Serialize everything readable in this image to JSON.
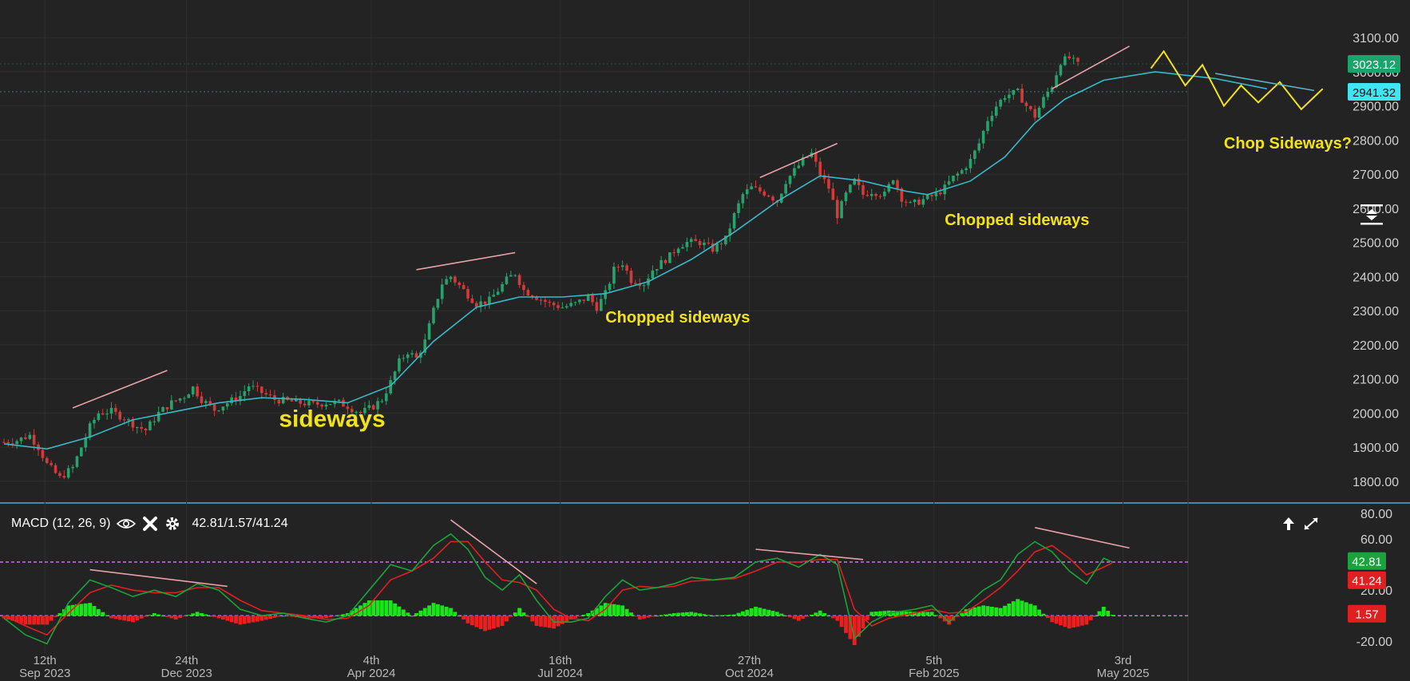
{
  "chart_data": [
    {
      "type": "candlestick",
      "title": "",
      "ylim": [
        1760,
        3140
      ],
      "y_ticks": [
        "3100.00",
        "3000.00",
        "2900.00",
        "2800.00",
        "2700.00",
        "2600.00",
        "2500.00",
        "2400.00",
        "2300.00",
        "2200.00",
        "2100.00",
        "2000.00",
        "1900.00",
        "1800.00"
      ],
      "x_ticks": [
        {
          "day": "12th",
          "month": "Sep 2023"
        },
        {
          "day": "24th",
          "month": "Dec 2023"
        },
        {
          "day": "4th",
          "month": "Apr 2024"
        },
        {
          "day": "16th",
          "month": "Jul 2024"
        },
        {
          "day": "27th",
          "month": "Oct 2024"
        },
        {
          "day": "5th",
          "month": "Feb 2025"
        },
        {
          "day": "3rd",
          "month": "May 2025"
        }
      ],
      "price_path": [
        [
          0,
          1915
        ],
        [
          3,
          1920
        ],
        [
          6,
          1935
        ],
        [
          8,
          1900
        ],
        [
          10,
          1850
        ],
        [
          13,
          1810
        ],
        [
          16,
          1840
        ],
        [
          18,
          1900
        ],
        [
          20,
          1960
        ],
        [
          22,
          2000
        ],
        [
          25,
          2005
        ],
        [
          28,
          1985
        ],
        [
          31,
          1960
        ],
        [
          33,
          1950
        ],
        [
          36,
          2000
        ],
        [
          39,
          2030
        ],
        [
          42,
          2050
        ],
        [
          44,
          2075
        ],
        [
          46,
          2040
        ],
        [
          49,
          2010
        ],
        [
          52,
          2030
        ],
        [
          55,
          2050
        ],
        [
          57,
          2080
        ],
        [
          60,
          2060
        ],
        [
          63,
          2040
        ],
        [
          66,
          2035
        ],
        [
          69,
          2030
        ],
        [
          72,
          2025
        ],
        [
          75,
          2030
        ],
        [
          78,
          2030
        ],
        [
          80,
          2020
        ],
        [
          83,
          2000
        ],
        [
          86,
          2020
        ],
        [
          88,
          2040
        ],
        [
          90,
          2090
        ],
        [
          92,
          2150
        ],
        [
          94,
          2180
        ],
        [
          96,
          2160
        ],
        [
          98,
          2210
        ],
        [
          100,
          2300
        ],
        [
          102,
          2380
        ],
        [
          104,
          2400
        ],
        [
          107,
          2360
        ],
        [
          110,
          2320
        ],
        [
          113,
          2330
        ],
        [
          115,
          2360
        ],
        [
          117,
          2390
        ],
        [
          119,
          2410
        ],
        [
          121,
          2360
        ],
        [
          124,
          2340
        ],
        [
          127,
          2320
        ],
        [
          130,
          2310
        ],
        [
          133,
          2320
        ],
        [
          136,
          2340
        ],
        [
          138,
          2310
        ],
        [
          140,
          2350
        ],
        [
          142,
          2420
        ],
        [
          144,
          2440
        ],
        [
          146,
          2390
        ],
        [
          149,
          2380
        ],
        [
          151,
          2420
        ],
        [
          153,
          2440
        ],
        [
          155,
          2460
        ],
        [
          157,
          2490
        ],
        [
          159,
          2500
        ],
        [
          162,
          2500
        ],
        [
          165,
          2480
        ],
        [
          168,
          2510
        ],
        [
          170,
          2580
        ],
        [
          172,
          2640
        ],
        [
          174,
          2660
        ],
        [
          176,
          2650
        ],
        [
          178,
          2640
        ],
        [
          180,
          2620
        ],
        [
          182,
          2680
        ],
        [
          184,
          2710
        ],
        [
          186,
          2740
        ],
        [
          188,
          2760
        ],
        [
          190,
          2700
        ],
        [
          192,
          2660
        ],
        [
          194,
          2580
        ],
        [
          196,
          2640
        ],
        [
          198,
          2680
        ],
        [
          200,
          2640
        ],
        [
          202,
          2650
        ],
        [
          205,
          2640
        ],
        [
          207,
          2690
        ],
        [
          209,
          2630
        ],
        [
          211,
          2610
        ],
        [
          213,
          2620
        ],
        [
          215,
          2630
        ],
        [
          217,
          2640
        ],
        [
          219,
          2660
        ],
        [
          221,
          2690
        ],
        [
          223,
          2710
        ],
        [
          225,
          2740
        ],
        [
          227,
          2790
        ],
        [
          229,
          2860
        ],
        [
          231,
          2900
        ],
        [
          233,
          2930
        ],
        [
          236,
          2940
        ],
        [
          238,
          2900
        ],
        [
          240,
          2870
        ],
        [
          242,
          2920
        ],
        [
          244,
          2960
        ],
        [
          246,
          3030
        ],
        [
          248,
          3040
        ],
        [
          250,
          3020
        ]
      ],
      "series": [
        {
          "name": "",
          "color": "#38b8c8",
          "points": [
            [
              0,
              1910
            ],
            [
              10,
              1895
            ],
            [
              20,
              1930
            ],
            [
              30,
              1980
            ],
            [
              40,
              2005
            ],
            [
              50,
              2030
            ],
            [
              60,
              2045
            ],
            [
              70,
              2040
            ],
            [
              80,
              2030
            ],
            [
              90,
              2080
            ],
            [
              100,
              2210
            ],
            [
              110,
              2310
            ],
            [
              120,
              2340
            ],
            [
              130,
              2340
            ],
            [
              140,
              2350
            ],
            [
              150,
              2385
            ],
            [
              160,
              2450
            ],
            [
              170,
              2530
            ],
            [
              180,
              2620
            ],
            [
              190,
              2695
            ],
            [
              200,
              2680
            ],
            [
              210,
              2650
            ],
            [
              215,
              2640
            ],
            [
              225,
              2680
            ],
            [
              233,
              2750
            ],
            [
              240,
              2850
            ],
            [
              247,
              2920
            ],
            [
              256,
              2975
            ],
            [
              268,
              3000
            ],
            [
              282,
              2980
            ],
            [
              294,
              2950
            ]
          ]
        }
      ],
      "price_labels": [
        {
          "value": "3023.12",
          "price": 3023.12,
          "color": "#1aa36b"
        },
        {
          "value": "2941.32",
          "price": 2941.32,
          "color": "#3ee6f5"
        }
      ],
      "annotations": [
        {
          "text": "sideways",
          "x": 64,
          "y": 1960,
          "size": 30
        },
        {
          "text": "Chopped sideways",
          "x": 140,
          "y": 2265,
          "size": 20
        },
        {
          "text": "Chopped sideways",
          "x": 219,
          "y": 2550,
          "size": 20
        },
        {
          "text": "Chop Sideways?",
          "x": 284,
          "y": 2775,
          "size": 20
        }
      ],
      "trend_lines": [
        {
          "x1": 16,
          "y1": 2015,
          "x2": 38,
          "y2": 2125,
          "color": "#e8a0a8"
        },
        {
          "x1": 96,
          "y1": 2420,
          "x2": 119,
          "y2": 2470,
          "color": "#e8a0a8"
        },
        {
          "x1": 176,
          "y1": 2690,
          "x2": 194,
          "y2": 2790,
          "color": "#e8a0a8"
        },
        {
          "x1": 244,
          "y1": 2950,
          "x2": 262,
          "y2": 3075,
          "color": "#e8a0a8"
        }
      ],
      "projection_zigzag": [
        [
          267,
          3010
        ],
        [
          270,
          3060
        ],
        [
          275,
          2960
        ],
        [
          279,
          3020
        ],
        [
          284,
          2900
        ],
        [
          288,
          2960
        ],
        [
          292,
          2910
        ],
        [
          297,
          2970
        ],
        [
          302,
          2890
        ],
        [
          307,
          2950
        ]
      ],
      "projection_line": [
        [
          282,
          2995
        ],
        [
          305,
          2945
        ]
      ]
    },
    {
      "type": "macd",
      "label": "MACD (12, 26, 9)",
      "values_text": "42.81/1.57/41.24",
      "ylim": [
        -28,
        82
      ],
      "y_ticks": [
        "80.00",
        "60.00",
        "20.00",
        "-20.00"
      ],
      "macd_value": 42.81,
      "signal_value": 41.24,
      "hist_value": 1.57,
      "macd_color": "#1aa33a",
      "signal_color": "#e02020",
      "level_lines": [
        42,
        0
      ],
      "macd_line": [
        [
          0,
          -2
        ],
        [
          5,
          -15
        ],
        [
          10,
          -22
        ],
        [
          15,
          10
        ],
        [
          20,
          28
        ],
        [
          25,
          22
        ],
        [
          30,
          15
        ],
        [
          35,
          20
        ],
        [
          40,
          15
        ],
        [
          45,
          25
        ],
        [
          50,
          20
        ],
        [
          55,
          5
        ],
        [
          60,
          0
        ],
        [
          65,
          2
        ],
        [
          70,
          -2
        ],
        [
          75,
          -5
        ],
        [
          80,
          0
        ],
        [
          85,
          20
        ],
        [
          90,
          40
        ],
        [
          95,
          35
        ],
        [
          100,
          55
        ],
        [
          104,
          64
        ],
        [
          108,
          52
        ],
        [
          112,
          30
        ],
        [
          116,
          20
        ],
        [
          120,
          32
        ],
        [
          124,
          12
        ],
        [
          128,
          -5
        ],
        [
          132,
          -5
        ],
        [
          136,
          -2
        ],
        [
          140,
          15
        ],
        [
          144,
          28
        ],
        [
          148,
          20
        ],
        [
          152,
          22
        ],
        [
          156,
          25
        ],
        [
          160,
          30
        ],
        [
          165,
          28
        ],
        [
          170,
          30
        ],
        [
          175,
          42
        ],
        [
          180,
          45
        ],
        [
          185,
          38
        ],
        [
          190,
          48
        ],
        [
          194,
          40
        ],
        [
          198,
          -18
        ],
        [
          202,
          -5
        ],
        [
          206,
          2
        ],
        [
          212,
          5
        ],
        [
          216,
          8
        ],
        [
          220,
          -5
        ],
        [
          224,
          8
        ],
        [
          228,
          20
        ],
        [
          232,
          28
        ],
        [
          236,
          48
        ],
        [
          240,
          58
        ],
        [
          244,
          50
        ],
        [
          248,
          35
        ],
        [
          252,
          25
        ],
        [
          256,
          45
        ],
        [
          258,
          42
        ]
      ],
      "signal_line": [
        [
          0,
          0
        ],
        [
          5,
          -8
        ],
        [
          10,
          -15
        ],
        [
          15,
          2
        ],
        [
          20,
          18
        ],
        [
          25,
          24
        ],
        [
          30,
          20
        ],
        [
          35,
          18
        ],
        [
          40,
          18
        ],
        [
          45,
          22
        ],
        [
          50,
          22
        ],
        [
          55,
          12
        ],
        [
          60,
          4
        ],
        [
          65,
          2
        ],
        [
          70,
          0
        ],
        [
          75,
          -3
        ],
        [
          80,
          -2
        ],
        [
          85,
          8
        ],
        [
          90,
          28
        ],
        [
          95,
          35
        ],
        [
          100,
          45
        ],
        [
          104,
          58
        ],
        [
          108,
          58
        ],
        [
          112,
          42
        ],
        [
          116,
          28
        ],
        [
          120,
          26
        ],
        [
          124,
          20
        ],
        [
          128,
          5
        ],
        [
          132,
          -2
        ],
        [
          136,
          -4
        ],
        [
          140,
          5
        ],
        [
          144,
          20
        ],
        [
          148,
          23
        ],
        [
          152,
          22
        ],
        [
          156,
          23
        ],
        [
          160,
          27
        ],
        [
          165,
          28
        ],
        [
          170,
          29
        ],
        [
          175,
          35
        ],
        [
          180,
          42
        ],
        [
          185,
          42
        ],
        [
          190,
          44
        ],
        [
          194,
          44
        ],
        [
          198,
          5
        ],
        [
          202,
          -8
        ],
        [
          206,
          -2
        ],
        [
          212,
          2
        ],
        [
          216,
          5
        ],
        [
          220,
          2
        ],
        [
          224,
          3
        ],
        [
          228,
          12
        ],
        [
          232,
          22
        ],
        [
          236,
          35
        ],
        [
          240,
          50
        ],
        [
          244,
          55
        ],
        [
          248,
          45
        ],
        [
          252,
          32
        ],
        [
          256,
          38
        ],
        [
          258,
          41.24
        ]
      ],
      "trend_lines": [
        {
          "x1": 20,
          "y1": 36,
          "x2": 52,
          "y2": 23
        },
        {
          "x1": 104,
          "y1": 75,
          "x2": 124,
          "y2": 25
        },
        {
          "x1": 175,
          "y1": 52,
          "x2": 200,
          "y2": 44
        },
        {
          "x1": 240,
          "y1": 69,
          "x2": 262,
          "y2": 53
        }
      ]
    }
  ],
  "ui": {
    "macd_label": "MACD (12, 26, 9)",
    "macd_values": "42.81/1.57/41.24",
    "macd_tags": [
      {
        "value": "42.81",
        "color": "#1aa33a"
      },
      {
        "value": "41.24",
        "color": "#e02020"
      },
      {
        "value": "1.57",
        "color": "#e02020"
      }
    ],
    "icons": [
      "eye-icon",
      "close-icon",
      "gear-icon",
      "arrow-up-icon",
      "expand-icon",
      "tool-icon"
    ]
  }
}
